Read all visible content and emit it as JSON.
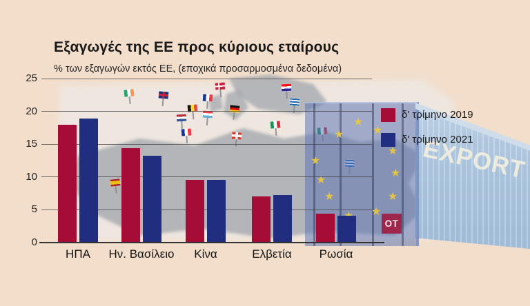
{
  "header": {
    "title": "Εξαγωγές της ΕΕ προς κύριους εταίρους",
    "subtitle": "% των εξαγωγών εκτός ΕΕ, (εποχικά προσαρμοσμένα δεδομένα)"
  },
  "chart_data": {
    "type": "bar",
    "categories": [
      "ΗΠΑ",
      "Ην. Βασίλειο",
      "Κίνα",
      "Ελβετία",
      "Ρωσία"
    ],
    "series": [
      {
        "name": "δ' τρίμηνο 2019",
        "color": "#A50D36",
        "values": [
          18.0,
          14.4,
          9.6,
          7.0,
          4.4
        ]
      },
      {
        "name": "δ' τρίμηνο 2021",
        "color": "#212E7F",
        "values": [
          18.9,
          13.2,
          9.6,
          7.3,
          4.1
        ]
      }
    ],
    "title": "Εξαγωγές της ΕΕ προς κύριους εταίρους",
    "xlabel": "",
    "ylabel": "% των εξαγωγών εκτός ΕΕ",
    "ylim": [
      0,
      25
    ],
    "yticks": [
      0,
      5,
      10,
      15,
      20,
      25
    ],
    "grid": true,
    "legend_position": "right"
  },
  "background": {
    "export_label": "EXPORT",
    "ot_logo_text": "OT",
    "decor_flags": [
      "ireland",
      "uk",
      "denmark",
      "france",
      "belgium",
      "luxembourg",
      "germany",
      "netherlands",
      "france2",
      "switzerland",
      "italy",
      "spain",
      "greece",
      "croatia",
      "italy2",
      "greece2"
    ],
    "colors": {
      "page_bg": "#F2DECB",
      "bar_red": "#A50D36",
      "bar_blue": "#212E7F",
      "container_blue": "#A9C3DC",
      "eu_panel_blue": "#5A73B4",
      "star_gold": "#E9C83F",
      "ot_red": "#A41036",
      "map_gray": "#99A1AB"
    }
  }
}
